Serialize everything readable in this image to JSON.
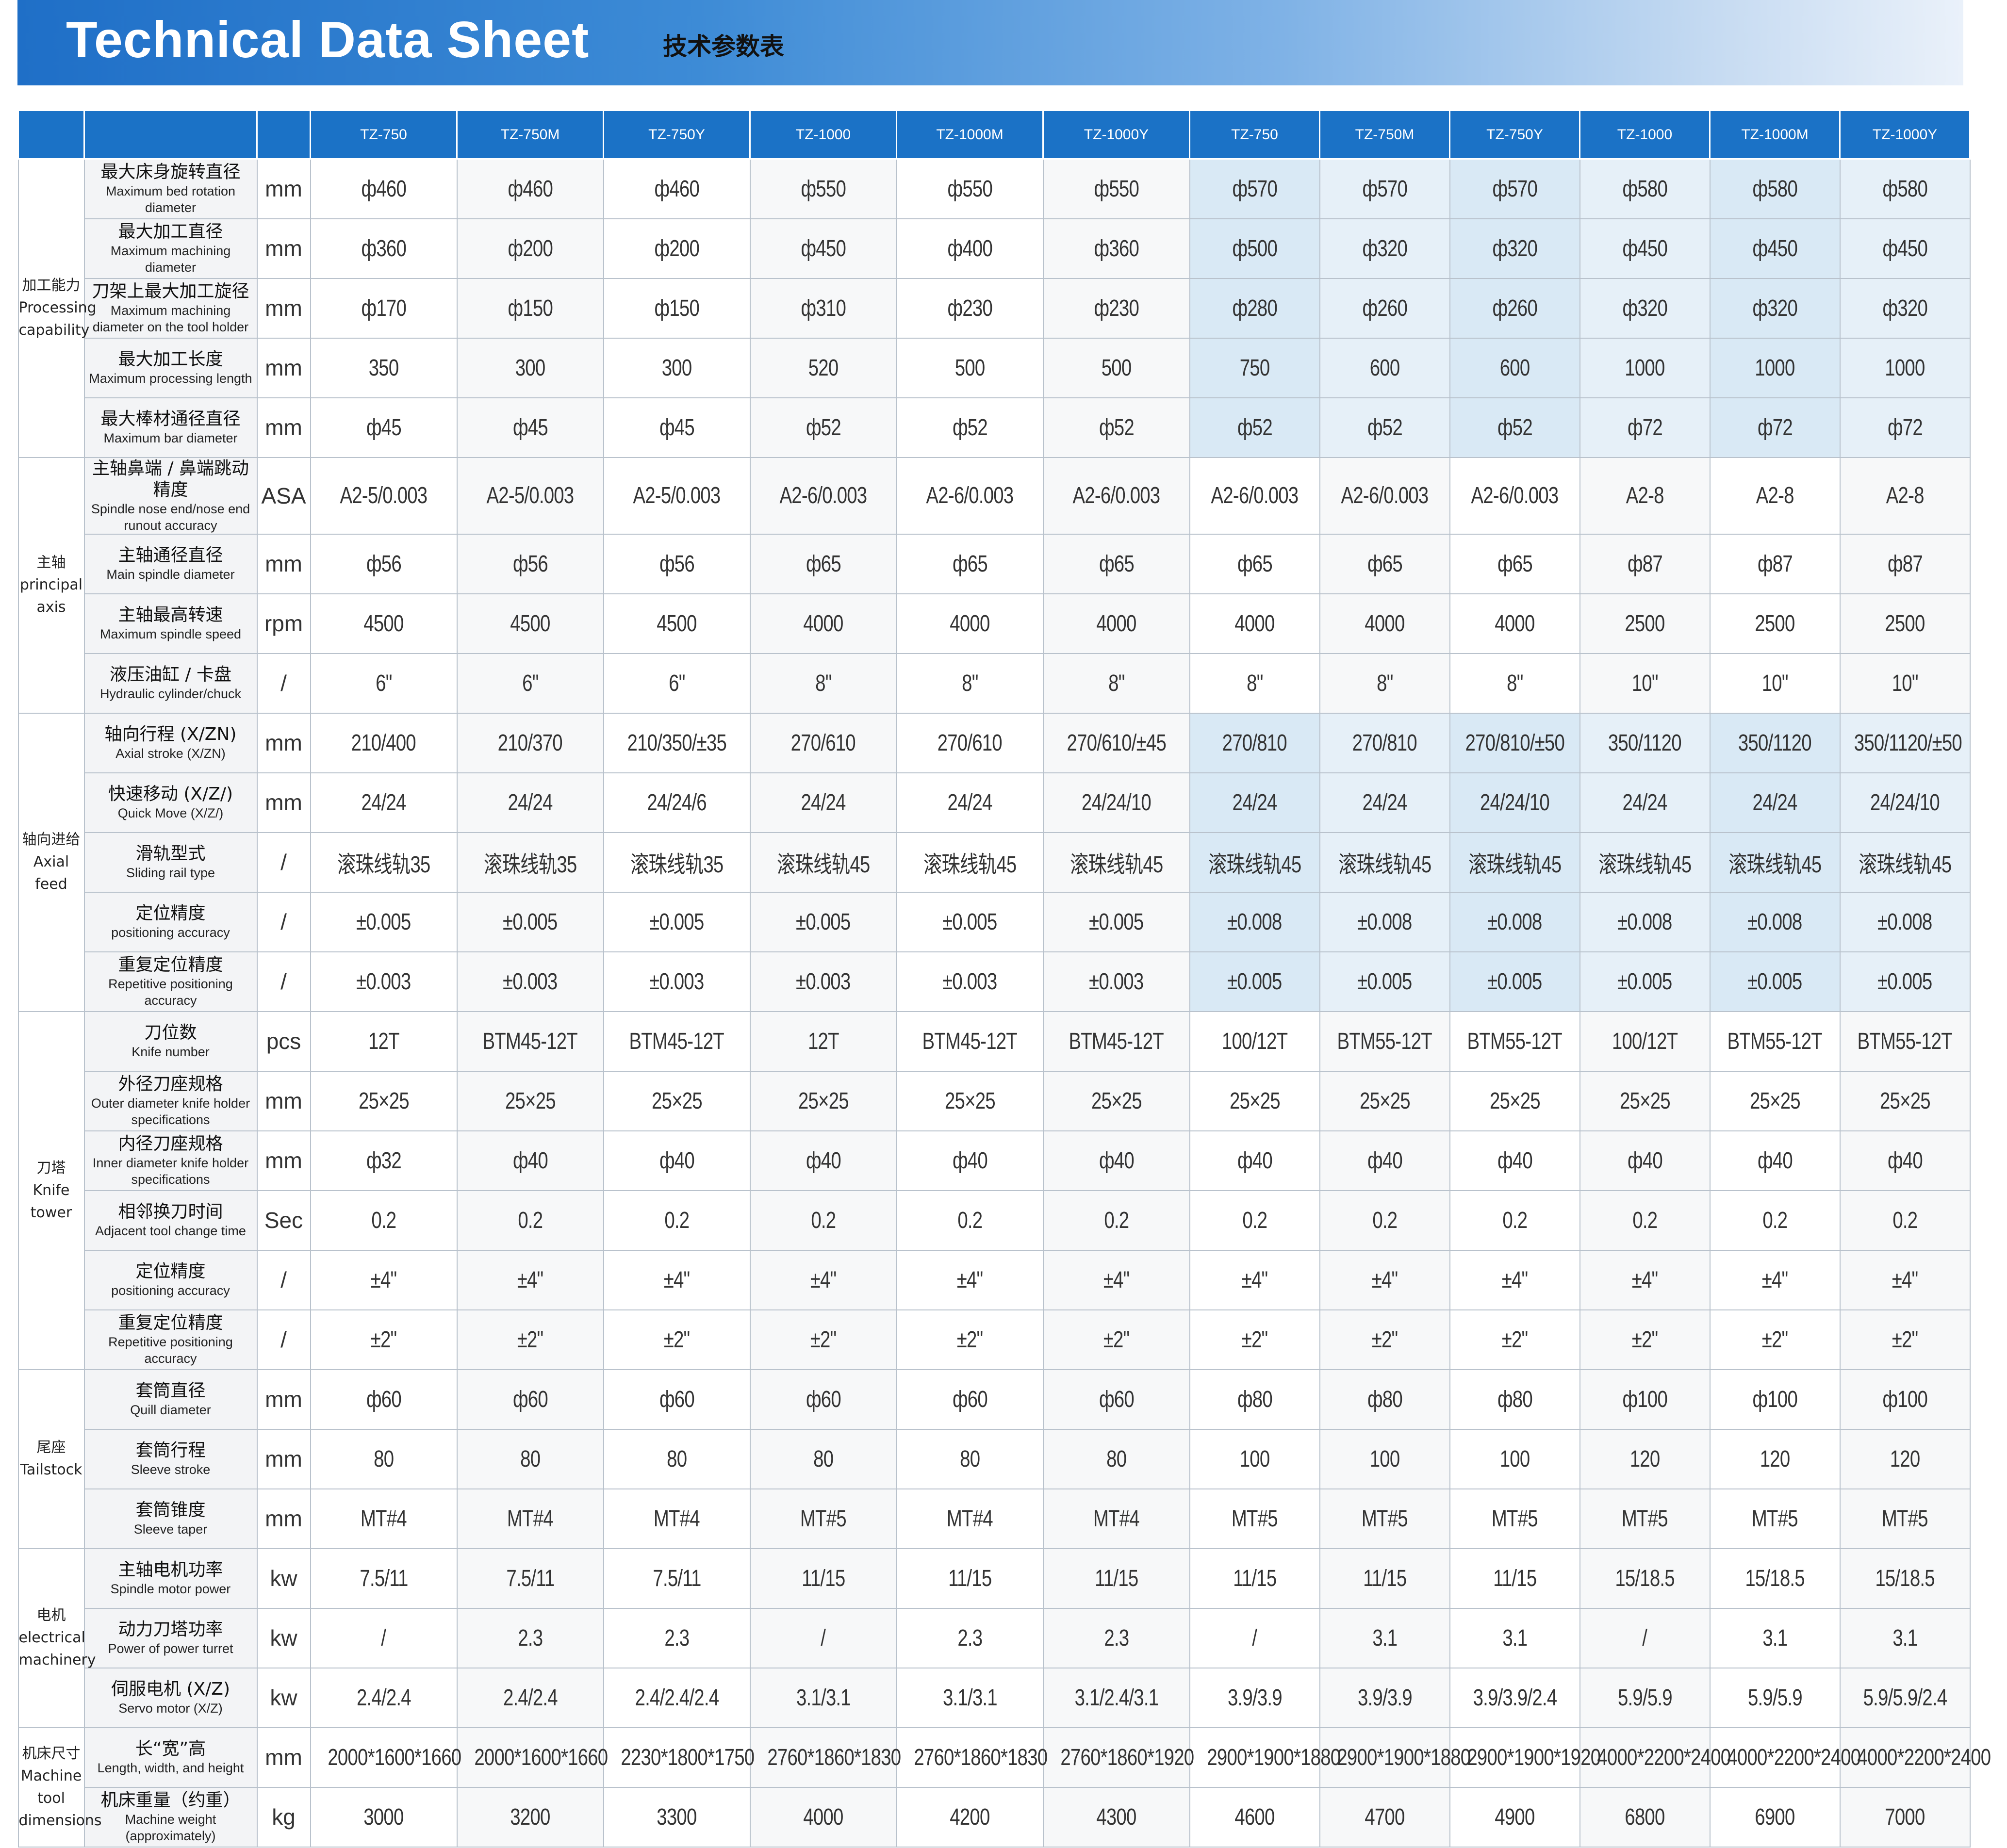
{
  "header": {
    "title": "Technical Data Sheet",
    "subtitle": "技术参数表"
  },
  "table": {
    "models": [
      "TZ-750",
      "TZ-750M",
      "TZ-750Y",
      "TZ-1000",
      "TZ-1000M",
      "TZ-1000Y",
      "TZ-750",
      "TZ-750M",
      "TZ-750Y",
      "TZ-1000",
      "TZ-1000M",
      "TZ-1000Y"
    ],
    "groups": [
      {
        "zh": "加工能力",
        "en": "Processing capability",
        "highlight": true,
        "rows": [
          {
            "zh": "最大床身旋转直径",
            "en": "Maximum bed rotation diameter",
            "unit": "mm",
            "values": [
              "ф460",
              "ф460",
              "ф460",
              "ф550",
              "ф550",
              "ф550",
              "ф570",
              "ф570",
              "ф570",
              "ф580",
              "ф580",
              "ф580"
            ]
          },
          {
            "zh": "最大加工直径",
            "en": "Maximum machining diameter",
            "unit": "mm",
            "values": [
              "ф360",
              "ф200",
              "ф200",
              "ф450",
              "ф400",
              "ф360",
              "ф500",
              "ф320",
              "ф320",
              "ф450",
              "ф450",
              "ф450"
            ]
          },
          {
            "zh": "刀架上最大加工旋径",
            "en": "Maximum machining diameter on the tool holder",
            "unit": "mm",
            "values": [
              "ф170",
              "ф150",
              "ф150",
              "ф310",
              "ф230",
              "ф230",
              "ф280",
              "ф260",
              "ф260",
              "ф320",
              "ф320",
              "ф320"
            ]
          },
          {
            "zh": "最大加工长度",
            "en": "Maximum processing length",
            "unit": "mm",
            "values": [
              "350",
              "300",
              "300",
              "520",
              "500",
              "500",
              "750",
              "600",
              "600",
              "1000",
              "1000",
              "1000"
            ]
          },
          {
            "zh": "最大棒材通径直径",
            "en": "Maximum bar diameter",
            "unit": "mm",
            "values": [
              "ф45",
              "ф45",
              "ф45",
              "ф52",
              "ф52",
              "ф52",
              "ф52",
              "ф52",
              "ф52",
              "ф72",
              "ф72",
              "ф72"
            ]
          }
        ]
      },
      {
        "zh": "主轴",
        "en": "principal axis",
        "highlight": false,
        "rows": [
          {
            "zh": "主轴鼻端 / 鼻端跳动精度",
            "en": "Spindle nose end/nose end runout accuracy",
            "unit": "ASA",
            "values": [
              "A2-5/0.003",
              "A2-5/0.003",
              "A2-5/0.003",
              "A2-6/0.003",
              "A2-6/0.003",
              "A2-6/0.003",
              "A2-6/0.003",
              "A2-6/0.003",
              "A2-6/0.003",
              "A2-8",
              "A2-8",
              "A2-8"
            ]
          },
          {
            "zh": "主轴通径直径",
            "en": "Main spindle diameter",
            "unit": "mm",
            "values": [
              "ф56",
              "ф56",
              "ф56",
              "ф65",
              "ф65",
              "ф65",
              "ф65",
              "ф65",
              "ф65",
              "ф87",
              "ф87",
              "ф87"
            ]
          },
          {
            "zh": "主轴最高转速",
            "en": "Maximum spindle speed",
            "unit": "rpm",
            "values": [
              "4500",
              "4500",
              "4500",
              "4000",
              "4000",
              "4000",
              "4000",
              "4000",
              "4000",
              "2500",
              "2500",
              "2500"
            ]
          },
          {
            "zh": "液压油缸 / 卡盘",
            "en": "Hydraulic cylinder/chuck",
            "unit": "/",
            "values": [
              "6\"",
              "6\"",
              "6\"",
              "8\"",
              "8\"",
              "8\"",
              "8\"",
              "8\"",
              "8\"",
              "10\"",
              "10\"",
              "10\""
            ]
          }
        ]
      },
      {
        "zh": "轴向进给",
        "en": "Axial feed",
        "highlight": true,
        "rows": [
          {
            "zh": "轴向行程 (X/ZN)",
            "en": "Axial stroke (X/ZN)",
            "unit": "mm",
            "values": [
              "210/400",
              "210/370",
              "210/350/±35",
              "270/610",
              "270/610",
              "270/610/±45",
              "270/810",
              "270/810",
              "270/810/±50",
              "350/1120",
              "350/1120",
              "350/1120/±50"
            ]
          },
          {
            "zh": "快速移动 (X/Z/)",
            "en": "Quick Move (X/Z/)",
            "unit": "mm",
            "values": [
              "24/24",
              "24/24",
              "24/24/6",
              "24/24",
              "24/24",
              "24/24/10",
              "24/24",
              "24/24",
              "24/24/10",
              "24/24",
              "24/24",
              "24/24/10"
            ]
          },
          {
            "zh": "滑轨型式",
            "en": "Sliding rail type",
            "unit": "/",
            "values": [
              "滚珠线轨35",
              "滚珠线轨35",
              "滚珠线轨35",
              "滚珠线轨45",
              "滚珠线轨45",
              "滚珠线轨45",
              "滚珠线轨45",
              "滚珠线轨45",
              "滚珠线轨45",
              "滚珠线轨45",
              "滚珠线轨45",
              "滚珠线轨45"
            ]
          },
          {
            "zh": "定位精度",
            "en": "positioning accuracy",
            "unit": "/",
            "values": [
              "±0.005",
              "±0.005",
              "±0.005",
              "±0.005",
              "±0.005",
              "±0.005",
              "±0.008",
              "±0.008",
              "±0.008",
              "±0.008",
              "±0.008",
              "±0.008"
            ]
          },
          {
            "zh": "重复定位精度",
            "en": "Repetitive positioning accuracy",
            "unit": "/",
            "values": [
              "±0.003",
              "±0.003",
              "±0.003",
              "±0.003",
              "±0.003",
              "±0.003",
              "±0.005",
              "±0.005",
              "±0.005",
              "±0.005",
              "±0.005",
              "±0.005"
            ]
          }
        ]
      },
      {
        "zh": "刀塔",
        "en": "Knife tower",
        "highlight": false,
        "rows": [
          {
            "zh": "刀位数",
            "en": "Knife number",
            "unit": "pcs",
            "values": [
              "12T",
              "BTM45-12T",
              "BTM45-12T",
              "12T",
              "BTM45-12T",
              "BTM45-12T",
              "100/12T",
              "BTM55-12T",
              "BTM55-12T",
              "100/12T",
              "BTM55-12T",
              "BTM55-12T"
            ]
          },
          {
            "zh": "外径刀座规格",
            "en": "Outer diameter knife holder specifications",
            "unit": "mm",
            "values": [
              "25×25",
              "25×25",
              "25×25",
              "25×25",
              "25×25",
              "25×25",
              "25×25",
              "25×25",
              "25×25",
              "25×25",
              "25×25",
              "25×25"
            ]
          },
          {
            "zh": "内径刀座规格",
            "en": "Inner diameter knife holder specifications",
            "unit": "mm",
            "values": [
              "ф32",
              "ф40",
              "ф40",
              "ф40",
              "ф40",
              "ф40",
              "ф40",
              "ф40",
              "ф40",
              "ф40",
              "ф40",
              "ф40"
            ]
          },
          {
            "zh": "相邻换刀时间",
            "en": "Adjacent tool change time",
            "unit": "Sec",
            "values": [
              "0.2",
              "0.2",
              "0.2",
              "0.2",
              "0.2",
              "0.2",
              "0.2",
              "0.2",
              "0.2",
              "0.2",
              "0.2",
              "0.2"
            ]
          },
          {
            "zh": "定位精度",
            "en": "positioning accuracy",
            "unit": "/",
            "values": [
              "±4\"",
              "±4\"",
              "±4\"",
              "±4\"",
              "±4\"",
              "±4\"",
              "±4\"",
              "±4\"",
              "±4\"",
              "±4\"",
              "±4\"",
              "±4\""
            ]
          },
          {
            "zh": "重复定位精度",
            "en": "Repetitive positioning accuracy",
            "unit": "/",
            "values": [
              "±2\"",
              "±2\"",
              "±2\"",
              "±2\"",
              "±2\"",
              "±2\"",
              "±2\"",
              "±2\"",
              "±2\"",
              "±2\"",
              "±2\"",
              "±2\""
            ]
          }
        ]
      },
      {
        "zh": "尾座 Tailstock",
        "en": "",
        "highlight": false,
        "rows": [
          {
            "zh": "套筒直径",
            "en": "Quill diameter",
            "unit": "mm",
            "values": [
              "ф60",
              "ф60",
              "ф60",
              "ф60",
              "ф60",
              "ф60",
              "ф80",
              "ф80",
              "ф80",
              "ф100",
              "ф100",
              "ф100"
            ]
          },
          {
            "zh": "套筒行程",
            "en": "Sleeve stroke",
            "unit": "mm",
            "values": [
              "80",
              "80",
              "80",
              "80",
              "80",
              "80",
              "100",
              "100",
              "100",
              "120",
              "120",
              "120"
            ]
          },
          {
            "zh": "套筒锥度",
            "en": "Sleeve taper",
            "unit": "mm",
            "values": [
              "MT#4",
              "MT#4",
              "MT#4",
              "MT#5",
              "MT#4",
              "MT#4",
              "MT#5",
              "MT#5",
              "MT#5",
              "MT#5",
              "MT#5",
              "MT#5"
            ]
          }
        ]
      },
      {
        "zh": "电机",
        "en": "electrical machinery",
        "highlight": false,
        "rows": [
          {
            "zh": "主轴电机功率",
            "en": "Spindle motor power",
            "unit": "kw",
            "values": [
              "7.5/11",
              "7.5/11",
              "7.5/11",
              "11/15",
              "11/15",
              "11/15",
              "11/15",
              "11/15",
              "11/15",
              "15/18.5",
              "15/18.5",
              "15/18.5"
            ]
          },
          {
            "zh": "动力刀塔功率",
            "en": "Power of power turret",
            "unit": "kw",
            "values": [
              "/",
              "2.3",
              "2.3",
              "/",
              "2.3",
              "2.3",
              "/",
              "3.1",
              "3.1",
              "/",
              "3.1",
              "3.1"
            ]
          },
          {
            "zh": "伺服电机 (X/Z)",
            "en": "Servo motor (X/Z)",
            "unit": "kw",
            "values": [
              "2.4/2.4",
              "2.4/2.4",
              "2.4/2.4/2.4",
              "3.1/3.1",
              "3.1/3.1",
              "3.1/2.4/3.1",
              "3.9/3.9",
              "3.9/3.9",
              "3.9/3.9/2.4",
              "5.9/5.9",
              "5.9/5.9",
              "5.9/5.9/2.4"
            ]
          }
        ]
      },
      {
        "zh": "机床尺寸",
        "en": "Machine tool dimensions",
        "highlight": false,
        "rows": [
          {
            "zh": "长“宽”高",
            "en": "Length, width, and height",
            "unit": "mm",
            "values": [
              "2000*1600*1660",
              "2000*1600*1660",
              "2230*1800*1750",
              "2760*1860*1830",
              "2760*1860*1830",
              "2760*1860*1920",
              "2900*1900*1880",
              "2900*1900*1880",
              "2900*1900*1920",
              "4000*2200*2400",
              "4000*2200*2400",
              "4000*2200*2400"
            ]
          },
          {
            "zh": "机床重量（约重）",
            "en": "Machine weight (approximately)",
            "unit": "kg",
            "values": [
              "3000",
              "3200",
              "3300",
              "4000",
              "4200",
              "4300",
              "4600",
              "4700",
              "4900",
              "6800",
              "6900",
              "7000"
            ]
          }
        ]
      }
    ]
  }
}
